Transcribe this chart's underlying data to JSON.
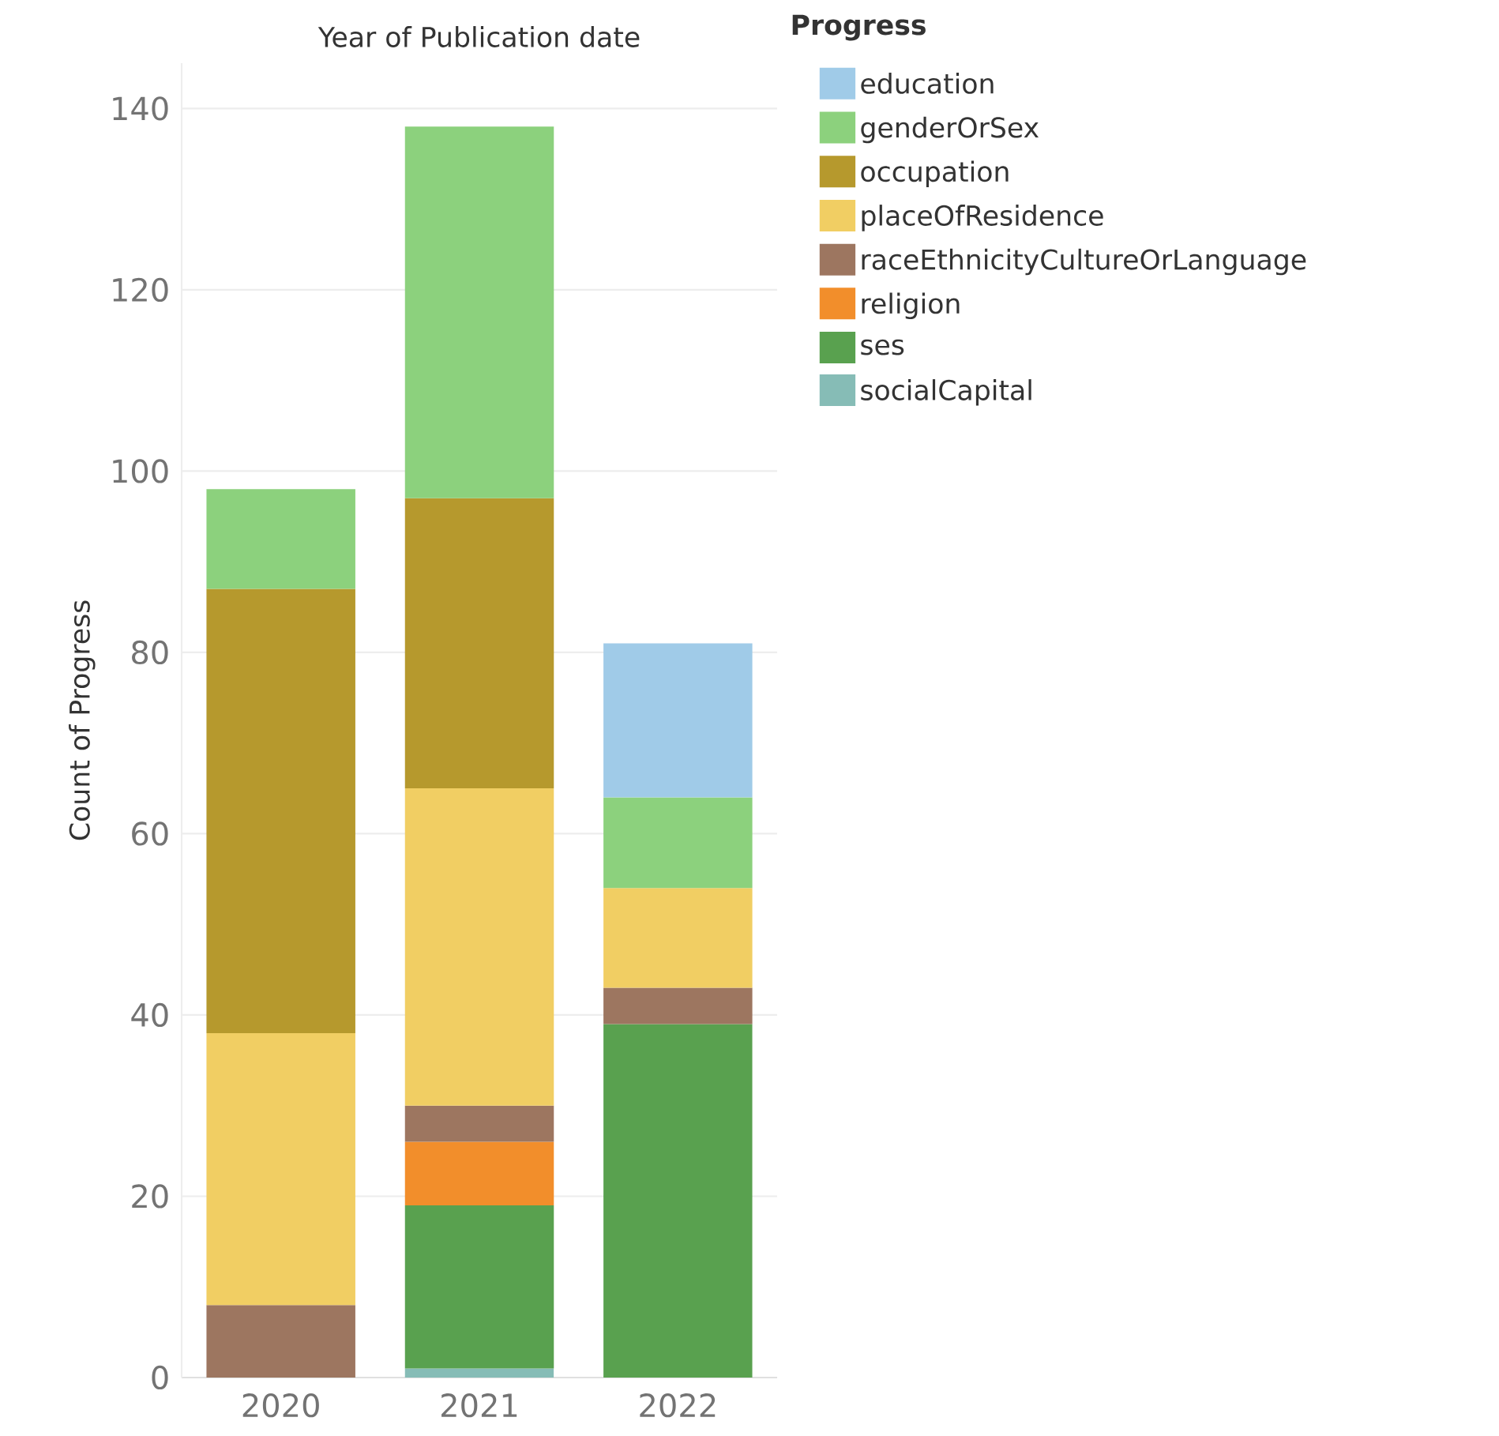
{
  "chart_data": {
    "type": "bar",
    "stacked": true,
    "title": "Year of Publication date",
    "ylabel": "Count of Progress",
    "legend_title": "Progress",
    "legend": "right",
    "categories": [
      "2020",
      "2021",
      "2022"
    ],
    "ylim": [
      0,
      145
    ],
    "yticks": [
      0,
      20,
      40,
      60,
      80,
      100,
      120,
      140
    ],
    "grid": "y",
    "series": [
      {
        "name": "socialCapital",
        "color": "#86bcb6",
        "values": [
          null,
          1,
          null
        ]
      },
      {
        "name": "ses",
        "color": "#59a14f",
        "values": [
          null,
          18,
          39
        ]
      },
      {
        "name": "religion",
        "color": "#f28e2b",
        "values": [
          null,
          7,
          null
        ]
      },
      {
        "name": "raceEthnicityCultureOrLanguage",
        "color": "#9d7660",
        "values": [
          8,
          4,
          4
        ]
      },
      {
        "name": "placeOfResidence",
        "color": "#f1ce63",
        "values": [
          30,
          35,
          11
        ]
      },
      {
        "name": "occupation",
        "color": "#b6992d",
        "values": [
          49,
          32,
          null
        ]
      },
      {
        "name": "genderOrSex",
        "color": "#8cd17d",
        "values": [
          11,
          41,
          10
        ]
      },
      {
        "name": "education",
        "color": "#a0cbe8",
        "values": [
          null,
          null,
          17
        ]
      }
    ]
  }
}
